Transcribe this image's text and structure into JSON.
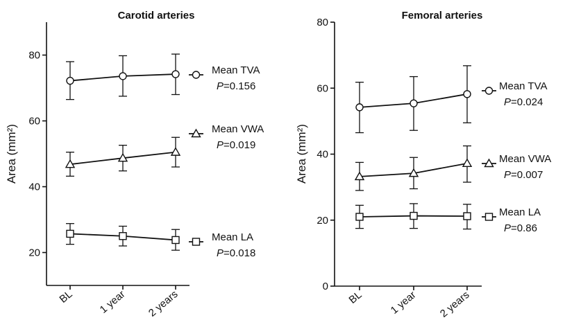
{
  "chart_data": [
    {
      "type": "line",
      "title": "Carotid arteries",
      "xlabel": "",
      "ylabel": "Area (mm²)",
      "categories": [
        "BL",
        "1 year",
        "2 years"
      ],
      "ylim": [
        10,
        90
      ],
      "yticks": [
        20,
        40,
        60,
        80
      ],
      "grid": false,
      "series": [
        {
          "name": "Mean TVA",
          "p_prefix": "P",
          "p_value": "=0.156",
          "marker": "circle",
          "values": [
            72.2,
            73.6,
            74.2
          ],
          "err_low": [
            66.5,
            67.5,
            68.0
          ],
          "err_high": [
            78.0,
            79.8,
            80.3
          ]
        },
        {
          "name": "Mean VWA",
          "p_prefix": "P",
          "p_value": "=0.019",
          "marker": "triangle",
          "values": [
            46.8,
            48.7,
            50.5
          ],
          "err_low": [
            43.2,
            44.8,
            46.0
          ],
          "err_high": [
            50.5,
            52.6,
            55.0
          ]
        },
        {
          "name": "Mean LA",
          "p_prefix": "P",
          "p_value": "=0.018",
          "marker": "square",
          "values": [
            25.7,
            25.0,
            23.8
          ],
          "err_low": [
            22.5,
            22.0,
            20.7
          ],
          "err_high": [
            28.8,
            28.0,
            27.0
          ]
        }
      ]
    },
    {
      "type": "line",
      "title": "Femoral arteries",
      "xlabel": "",
      "ylabel": "Area (mm²)",
      "categories": [
        "BL",
        "1 year",
        "2 years"
      ],
      "ylim": [
        0,
        80
      ],
      "yticks": [
        0,
        20,
        40,
        60,
        80
      ],
      "grid": false,
      "series": [
        {
          "name": "Mean TVA",
          "p_prefix": "P",
          "p_value": "=0.024",
          "marker": "circle",
          "values": [
            54.2,
            55.4,
            58.2
          ],
          "err_low": [
            46.5,
            47.2,
            49.5
          ],
          "err_high": [
            61.8,
            63.5,
            66.8
          ]
        },
        {
          "name": "Mean VWA",
          "p_prefix": "P",
          "p_value": "=0.007",
          "marker": "triangle",
          "values": [
            33.2,
            34.2,
            37.2
          ],
          "err_low": [
            29.0,
            29.5,
            31.5
          ],
          "err_high": [
            37.5,
            39.0,
            42.5
          ]
        },
        {
          "name": "Mean LA",
          "p_prefix": "P",
          "p_value": "=0.86",
          "marker": "square",
          "values": [
            21.0,
            21.3,
            21.2
          ],
          "err_low": [
            17.5,
            17.5,
            17.3
          ],
          "err_high": [
            24.5,
            25.0,
            24.8
          ]
        }
      ]
    }
  ]
}
